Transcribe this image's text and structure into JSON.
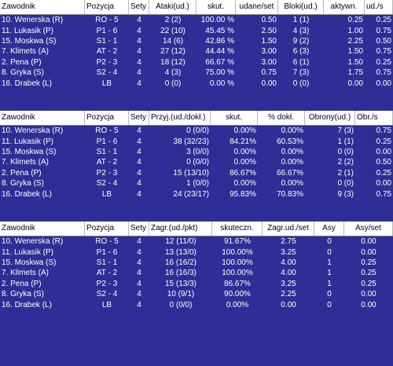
{
  "tables": [
    {
      "headers": [
        "Zawodnik",
        "Pozycja",
        "Sety",
        "Ataki(ud.)",
        "skut.",
        "udane/set",
        "Bloki(ud.)",
        "aktywn.",
        "ud./s"
      ],
      "rows": [
        [
          "10. Wenerska (R)",
          "RO - 5",
          "4",
          "2 (2)",
          "100.00 %",
          "0.50",
          "1 (1)",
          "0.25",
          "0.25"
        ],
        [
          "11. Lukasik (P)",
          "P1 - 6",
          "4",
          "22 (10)",
          "45.45 %",
          "2.50",
          "4 (3)",
          "1.00",
          "0.75"
        ],
        [
          "15. Moskwa (S)",
          "S1 - 1",
          "4",
          "14 (6)",
          "42.86 %",
          "1.50",
          "9 (2)",
          "2.25",
          "0.50"
        ],
        [
          "7. Klimets (A)",
          "AT - 2",
          "4",
          "27 (12)",
          "44.44 %",
          "3.00",
          "6 (3)",
          "1.50",
          "0.75"
        ],
        [
          "2. Pena (P)",
          "P2 - 3",
          "4",
          "18 (12)",
          "66.67 %",
          "3.00",
          "6 (1)",
          "1.50",
          "0.25"
        ],
        [
          "8. Gryka (S)",
          "S2 - 4",
          "4",
          "4 (3)",
          "75.00 %",
          "0.75",
          "7 (3)",
          "1.75",
          "0.75"
        ],
        [
          "16. Drabek (L)",
          "LB",
          "4",
          "0 (0)",
          "0.00 %",
          "0.00",
          "0 (0)",
          "0.00",
          "0.00"
        ]
      ]
    },
    {
      "headers": [
        "Zawodnik",
        "Pozycja",
        "Sety",
        "Przyj.(ud./dokł.)",
        "skut.",
        "% dokł.",
        "Obrony(ud.)",
        "Obr./s"
      ],
      "rows": [
        [
          "10. Wenerska (R)",
          "RO - 5",
          "4",
          "0 (0/0)",
          "0.00%",
          "0.00%",
          "7 (3)",
          "0.75"
        ],
        [
          "11. Lukasik (P)",
          "P1 - 6",
          "4",
          "38 (32/23)",
          "84.21%",
          "60.53%",
          "1 (1)",
          "0.25"
        ],
        [
          "15. Moskwa (S)",
          "S1 - 1",
          "4",
          "3 (0/0)",
          "0.00%",
          "0.00%",
          "0 (0)",
          "0.00"
        ],
        [
          "7. Klimets (A)",
          "AT - 2",
          "4",
          "0 (0/0)",
          "0.00%",
          "0.00%",
          "2 (2)",
          "0.50"
        ],
        [
          "2. Pena (P)",
          "P2 - 3",
          "4",
          "15 (13/10)",
          "86.67%",
          "66.67%",
          "2 (1)",
          "0.25"
        ],
        [
          "8. Gryka (S)",
          "S2 - 4",
          "4",
          "1 (0/0)",
          "0.00%",
          "0.00%",
          "0 (0)",
          "0.00"
        ],
        [
          "16. Drabek (L)",
          "LB",
          "4",
          "24 (23/17)",
          "95.83%",
          "70.83%",
          "9 (3)",
          "0.75"
        ]
      ]
    },
    {
      "headers": [
        "Zawodnik",
        "Pozycja",
        "Sety",
        "Zagr.(ud./pkt)",
        "skuteczn.",
        "Zagr.ud./set",
        "Asy",
        "Asy/set"
      ],
      "rows": [
        [
          "10. Wenerska (R)",
          "RO - 5",
          "4",
          "12 (11/0)",
          "91.67%",
          "2.75",
          "0",
          "0.00"
        ],
        [
          "11. Lukasik (P)",
          "P1 - 6",
          "4",
          "13 (13/0)",
          "100.00%",
          "3.25",
          "0",
          "0.00"
        ],
        [
          "15. Moskwa (S)",
          "S1 - 1",
          "4",
          "16 (16/2)",
          "100.00%",
          "4.00",
          "1",
          "0.25"
        ],
        [
          "7. Klimets (A)",
          "AT - 2",
          "4",
          "16 (16/3)",
          "100.00%",
          "4.00",
          "1",
          "0.25"
        ],
        [
          "2. Pena (P)",
          "P2 - 3",
          "4",
          "15 (13/3)",
          "86.67%",
          "3.25",
          "1",
          "0.25"
        ],
        [
          "8. Gryka (S)",
          "S2 - 4",
          "4",
          "10 (9/1)",
          "90.00%",
          "2.25",
          "0",
          "0.00"
        ],
        [
          "16. Drabek (L)",
          "LB",
          "4",
          "0 (0/0)",
          "0.00%",
          "0.00",
          "0",
          "0.00"
        ]
      ]
    }
  ]
}
